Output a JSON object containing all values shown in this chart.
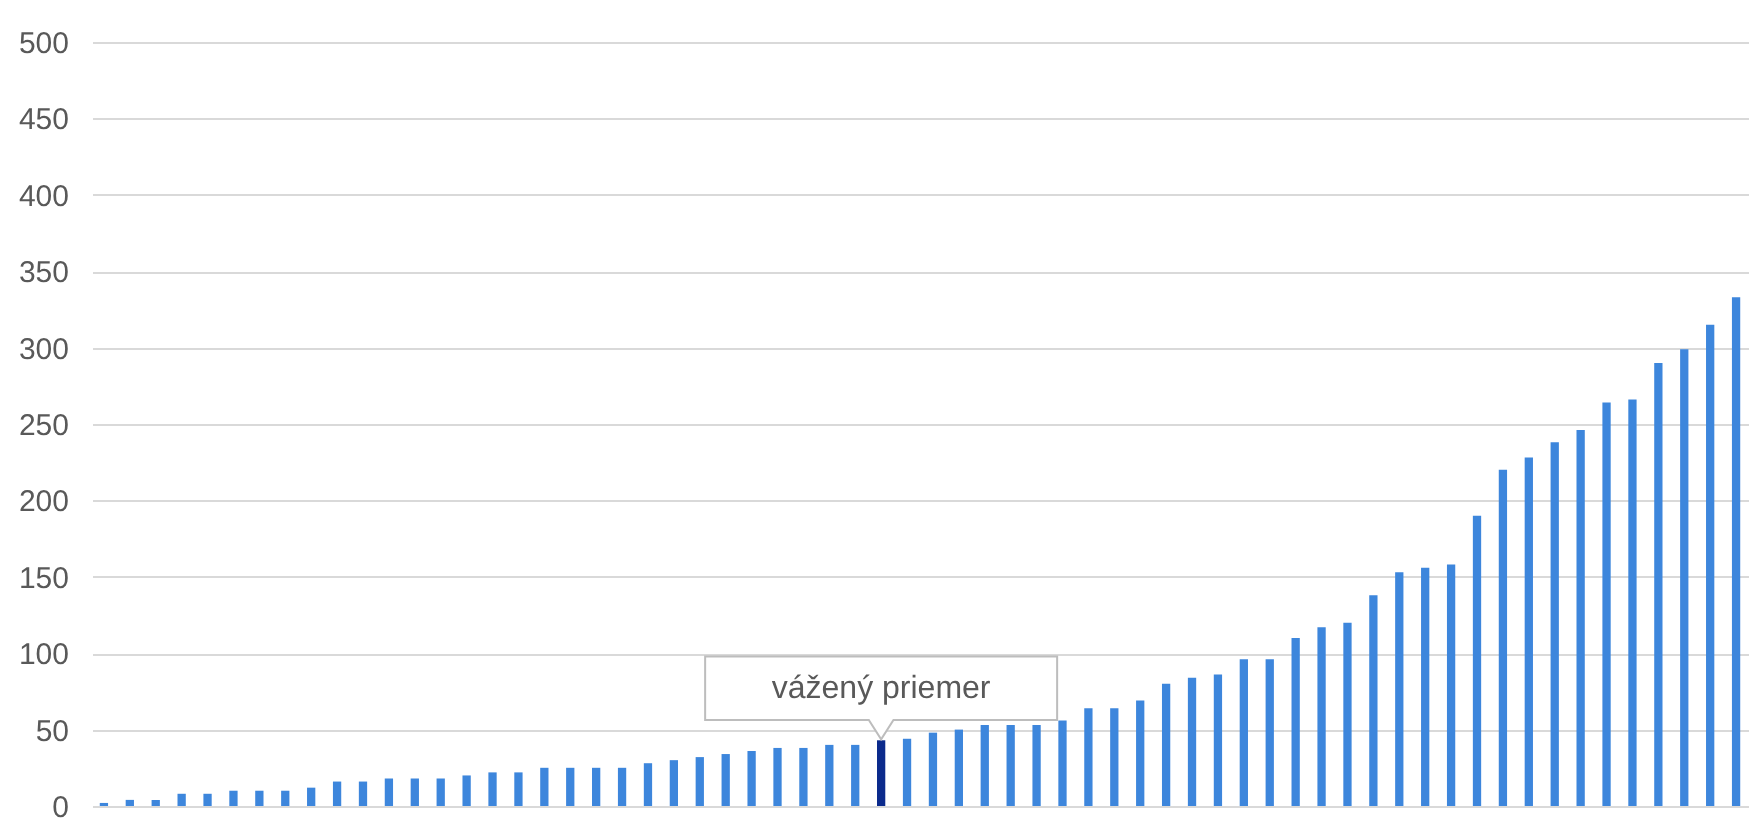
{
  "chart_data": {
    "type": "bar",
    "categories": [
      null,
      null,
      null,
      null,
      null,
      null,
      null,
      null,
      null,
      null,
      null,
      null,
      null,
      null,
      null,
      null,
      null,
      null,
      null,
      null,
      null,
      null,
      null,
      null,
      null,
      null,
      null,
      null,
      null,
      null,
      null,
      null,
      null,
      null,
      null,
      null,
      null,
      null,
      null,
      null,
      null,
      null,
      null,
      null,
      null,
      null,
      null,
      null,
      null,
      null,
      null,
      null,
      null,
      null,
      null,
      null,
      null,
      null,
      null,
      null,
      null,
      null,
      null,
      null
    ],
    "values": [
      2,
      4,
      4,
      8,
      8,
      10,
      10,
      10,
      12,
      16,
      16,
      18,
      18,
      18,
      20,
      22,
      22,
      25,
      25,
      25,
      25,
      28,
      30,
      32,
      34,
      36,
      38,
      38,
      40,
      40,
      43,
      44,
      48,
      50,
      53,
      53,
      53,
      56,
      64,
      64,
      69,
      80,
      84,
      86,
      96,
      96,
      110,
      117,
      120,
      138,
      153,
      156,
      158,
      190,
      220,
      228,
      238,
      246,
      264,
      266,
      290,
      299,
      315,
      333
    ],
    "colors": [
      "#3d86dc",
      "#3d86dc",
      "#3d86dc",
      "#3d86dc",
      "#3d86dc",
      "#3d86dc",
      "#3d86dc",
      "#3d86dc",
      "#3d86dc",
      "#3d86dc",
      "#3d86dc",
      "#3d86dc",
      "#3d86dc",
      "#3d86dc",
      "#3d86dc",
      "#3d86dc",
      "#3d86dc",
      "#3d86dc",
      "#3d86dc",
      "#3d86dc",
      "#3d86dc",
      "#3d86dc",
      "#3d86dc",
      "#3d86dc",
      "#3d86dc",
      "#3d86dc",
      "#3d86dc",
      "#3d86dc",
      "#3d86dc",
      "#3d86dc",
      "#0b2a8c",
      "#3d86dc",
      "#3d86dc",
      "#3d86dc",
      "#3d86dc",
      "#3d86dc",
      "#3d86dc",
      "#3d86dc",
      "#3d86dc",
      "#3d86dc",
      "#3d86dc",
      "#3d86dc",
      "#3d86dc",
      "#3d86dc",
      "#3d86dc",
      "#3d86dc",
      "#3d86dc",
      "#3d86dc",
      "#3d86dc",
      "#3d86dc",
      "#3d86dc",
      "#3d86dc",
      "#3d86dc",
      "#3d86dc",
      "#3d86dc",
      "#3d86dc",
      "#3d86dc",
      "#3d86dc",
      "#3d86dc",
      "#3d86dc",
      "#3d86dc",
      "#3d86dc",
      "#3d86dc",
      "#3d86dc"
    ],
    "ylim": [
      0,
      500
    ],
    "yticks": [
      0,
      50,
      100,
      150,
      200,
      250,
      300,
      350,
      400,
      450,
      500
    ],
    "grid": "y",
    "annotations": [
      "vážený priemer"
    ]
  }
}
